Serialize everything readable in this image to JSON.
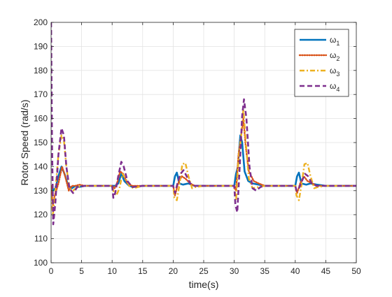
{
  "chart_data": {
    "type": "line",
    "title": "",
    "xlabel": "time(s)",
    "ylabel": "Rotor Speed (rad/s)",
    "xlim": [
      0,
      50
    ],
    "ylim": [
      100,
      200
    ],
    "xticks": [
      "0",
      "5",
      "10",
      "15",
      "20",
      "25",
      "30",
      "35",
      "40",
      "45",
      "50"
    ],
    "yticks": [
      "100",
      "110",
      "120",
      "130",
      "140",
      "150",
      "160",
      "170",
      "180",
      "190",
      "200"
    ],
    "grid": true,
    "legend_position": "top-right",
    "series": [
      {
        "name": "ω1",
        "name_base": "ω",
        "name_sub": "1",
        "color": "#0072BD",
        "style": "solid",
        "points": [
          [
            0,
            132
          ],
          [
            0.3,
            130
          ],
          [
            0.7,
            131
          ],
          [
            1.2,
            136
          ],
          [
            1.7,
            140
          ],
          [
            2.2,
            137
          ],
          [
            2.8,
            132
          ],
          [
            3.4,
            131
          ],
          [
            4,
            132
          ],
          [
            4.6,
            131.5
          ],
          [
            5.5,
            132
          ],
          [
            10,
            132
          ],
          [
            10.5,
            132
          ],
          [
            11,
            133
          ],
          [
            11.5,
            137
          ],
          [
            12,
            134
          ],
          [
            12.8,
            132
          ],
          [
            13.5,
            131.5
          ],
          [
            15,
            132
          ],
          [
            20,
            132
          ],
          [
            20.3,
            136
          ],
          [
            20.6,
            137.5
          ],
          [
            21,
            133
          ],
          [
            21.6,
            132.5
          ],
          [
            22.5,
            133
          ],
          [
            23.5,
            132
          ],
          [
            25,
            132
          ],
          [
            30,
            132
          ],
          [
            30.3,
            137
          ],
          [
            30.6,
            140
          ],
          [
            31,
            153
          ],
          [
            31.3,
            150
          ],
          [
            31.7,
            138
          ],
          [
            32.3,
            134
          ],
          [
            33,
            133
          ],
          [
            34,
            132.5
          ],
          [
            35,
            132
          ],
          [
            40,
            132
          ],
          [
            40.3,
            136
          ],
          [
            40.6,
            137.5
          ],
          [
            41,
            133
          ],
          [
            41.8,
            132.5
          ],
          [
            42.5,
            133
          ],
          [
            43.5,
            132.5
          ],
          [
            45,
            132
          ],
          [
            50,
            132
          ]
        ]
      },
      {
        "name": "ω2",
        "name_base": "ω",
        "name_sub": "2",
        "color": "#D95319",
        "style": "dotted",
        "points": [
          [
            0,
            132
          ],
          [
            0.3,
            124
          ],
          [
            0.6,
            128
          ],
          [
            1.2,
            133
          ],
          [
            1.8,
            140
          ],
          [
            2.3,
            136
          ],
          [
            2.9,
            130
          ],
          [
            3.4,
            132
          ],
          [
            4,
            132
          ],
          [
            4.6,
            132.5
          ],
          [
            5.5,
            132
          ],
          [
            10,
            132
          ],
          [
            10.4,
            131
          ],
          [
            10.8,
            133
          ],
          [
            11.3,
            138
          ],
          [
            11.8,
            137
          ],
          [
            12.5,
            133
          ],
          [
            13.3,
            132
          ],
          [
            15,
            132
          ],
          [
            20,
            132
          ],
          [
            20.3,
            128
          ],
          [
            20.8,
            133
          ],
          [
            21.4,
            136
          ],
          [
            22,
            135
          ],
          [
            22.8,
            133
          ],
          [
            23.5,
            132
          ],
          [
            25,
            132
          ],
          [
            30,
            132
          ],
          [
            30.3,
            130
          ],
          [
            30.7,
            145
          ],
          [
            31.1,
            152
          ],
          [
            31.5,
            160
          ],
          [
            31.9,
            148
          ],
          [
            32.4,
            138
          ],
          [
            33.2,
            134
          ],
          [
            34,
            133
          ],
          [
            35,
            132
          ],
          [
            40,
            132
          ],
          [
            40.3,
            129
          ],
          [
            40.8,
            133
          ],
          [
            41.4,
            136
          ],
          [
            42,
            134
          ],
          [
            42.8,
            133
          ],
          [
            43.5,
            132
          ],
          [
            45,
            132
          ],
          [
            50,
            132
          ]
        ]
      },
      {
        "name": "ω3",
        "name_base": "ω",
        "name_sub": "3",
        "color": "#EDB120",
        "style": "dashdot",
        "points": [
          [
            0,
            128
          ],
          [
            0.3,
            120
          ],
          [
            0.7,
            130
          ],
          [
            1.2,
            145
          ],
          [
            1.7,
            153
          ],
          [
            2.1,
            151
          ],
          [
            2.5,
            140
          ],
          [
            3,
            131
          ],
          [
            3.6,
            130
          ],
          [
            4.3,
            131.5
          ],
          [
            5.5,
            132
          ],
          [
            10,
            132
          ],
          [
            10.3,
            129
          ],
          [
            10.7,
            128
          ],
          [
            11.2,
            131
          ],
          [
            11.7,
            137
          ],
          [
            12.2,
            135
          ],
          [
            12.8,
            132
          ],
          [
            13.5,
            131
          ],
          [
            15,
            132
          ],
          [
            20,
            132
          ],
          [
            20.2,
            127
          ],
          [
            20.6,
            126
          ],
          [
            21,
            132
          ],
          [
            21.5,
            141
          ],
          [
            22,
            141.5
          ],
          [
            22.5,
            136
          ],
          [
            23.1,
            131
          ],
          [
            23.7,
            131.5
          ],
          [
            25,
            132
          ],
          [
            30,
            132
          ],
          [
            30.3,
            126
          ],
          [
            30.7,
            143
          ],
          [
            31.1,
            152
          ],
          [
            31.5,
            164
          ],
          [
            31.9,
            150
          ],
          [
            32.4,
            135
          ],
          [
            33,
            131
          ],
          [
            34,
            131.5
          ],
          [
            35,
            132
          ],
          [
            40,
            132
          ],
          [
            40.2,
            128
          ],
          [
            40.6,
            126
          ],
          [
            41,
            132
          ],
          [
            41.5,
            141
          ],
          [
            42,
            141.5
          ],
          [
            42.5,
            136
          ],
          [
            43.1,
            131
          ],
          [
            43.7,
            131.5
          ],
          [
            45,
            132
          ],
          [
            50,
            132
          ]
        ]
      },
      {
        "name": "ω4",
        "name_base": "ω",
        "name_sub": "4",
        "color": "#7E2F8E",
        "style": "dashed",
        "points": [
          [
            0,
            200
          ],
          [
            0.15,
            150
          ],
          [
            0.35,
            116
          ],
          [
            0.7,
            125
          ],
          [
            1.2,
            145
          ],
          [
            1.7,
            156
          ],
          [
            2.1,
            153
          ],
          [
            2.5,
            140
          ],
          [
            3,
            131
          ],
          [
            3.6,
            129
          ],
          [
            4.3,
            131.5
          ],
          [
            5.5,
            132
          ],
          [
            10,
            132
          ],
          [
            10.2,
            127
          ],
          [
            10.5,
            129
          ],
          [
            11,
            136
          ],
          [
            11.5,
            142
          ],
          [
            11.9,
            140
          ],
          [
            12.5,
            134
          ],
          [
            13.3,
            131.5
          ],
          [
            15,
            132
          ],
          [
            20,
            132
          ],
          [
            20.3,
            129
          ],
          [
            20.7,
            133
          ],
          [
            21.2,
            137
          ],
          [
            21.7,
            138.5
          ],
          [
            22.2,
            136
          ],
          [
            22.8,
            133
          ],
          [
            23.5,
            132
          ],
          [
            25,
            132
          ],
          [
            30,
            132
          ],
          [
            30.2,
            124
          ],
          [
            30.5,
            121
          ],
          [
            30.9,
            140
          ],
          [
            31.3,
            161
          ],
          [
            31.6,
            168
          ],
          [
            32,
            160
          ],
          [
            32.5,
            140
          ],
          [
            33,
            131
          ],
          [
            33.6,
            130
          ],
          [
            34.3,
            131.5
          ],
          [
            35,
            132
          ],
          [
            40,
            132
          ],
          [
            40.2,
            130
          ],
          [
            40.6,
            131
          ],
          [
            41.1,
            134
          ],
          [
            41.6,
            137
          ],
          [
            42.1,
            136
          ],
          [
            42.7,
            133
          ],
          [
            43.5,
            132
          ],
          [
            45,
            132
          ],
          [
            50,
            132
          ]
        ]
      }
    ]
  }
}
